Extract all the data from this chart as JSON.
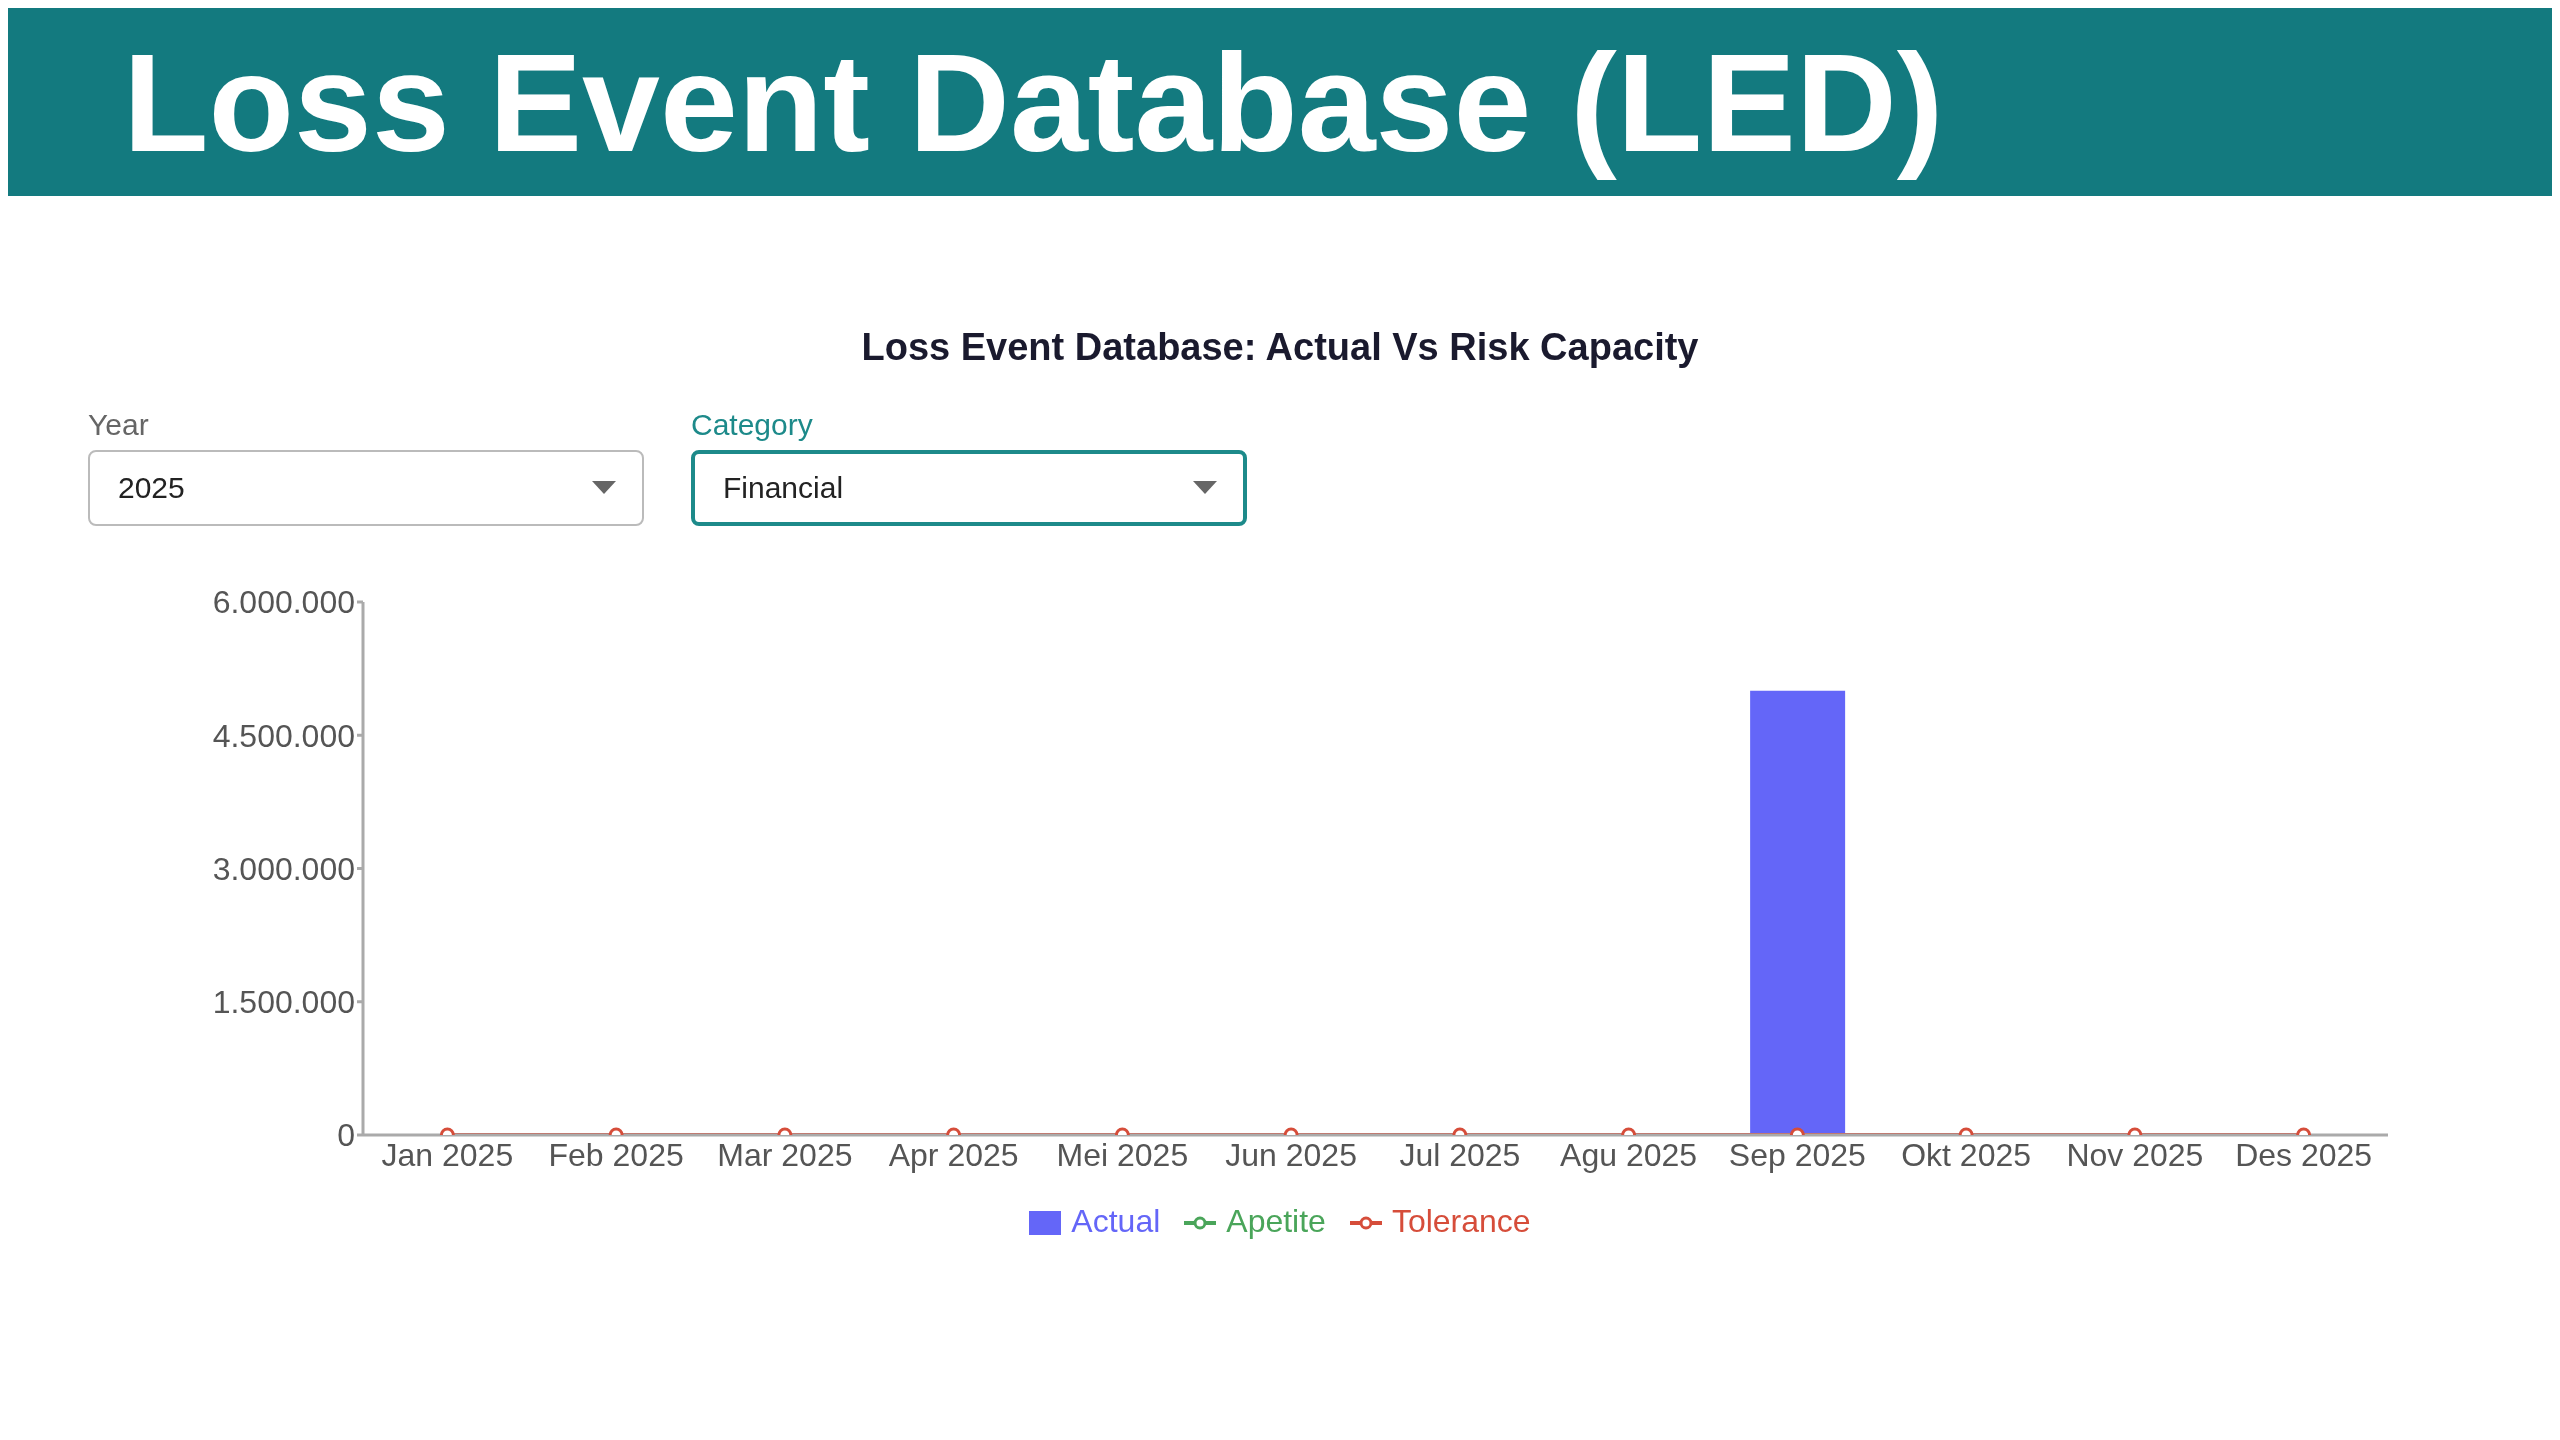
{
  "chart_data": {
    "type": "bar",
    "title": "Loss Event Database (LED)",
    "subtitle": "Loss Event Database: Actual Vs Risk Capacity",
    "annotations": [
      "Year",
      "2025",
      "Category",
      "Financial"
    ],
    "categories": [
      "Jan 2025",
      "Feb 2025",
      "Mar 2025",
      "Apr 2025",
      "Mei 2025",
      "Jun 2025",
      "Jul 2025",
      "Agu 2025",
      "Sep 2025",
      "Okt 2025",
      "Nov 2025",
      "Des 2025"
    ],
    "series": [
      {
        "name": "Actual",
        "color": "#6466f8",
        "values": [
          0,
          0,
          0,
          0,
          0,
          0,
          0,
          0,
          5000000,
          0,
          0,
          0
        ]
      },
      {
        "name": "Apetite",
        "type": "line",
        "color": "#4aa55a",
        "values": [
          null,
          null,
          null,
          null,
          null,
          null,
          null,
          null,
          null,
          null,
          null,
          null
        ]
      },
      {
        "name": "Tolerance",
        "type": "line",
        "color": "#d64d3a",
        "values": [
          0,
          0,
          0,
          0,
          0,
          0,
          0,
          0,
          0,
          0,
          0,
          0
        ]
      }
    ],
    "ylim": [
      0,
      6000000
    ],
    "yticks": [
      {
        "value": 0,
        "label": "0"
      },
      {
        "value": 1500000,
        "label": "1.500.000"
      },
      {
        "value": 3000000,
        "label": "3.000.000"
      },
      {
        "value": 4500000,
        "label": "4.500.000"
      },
      {
        "value": 6000000,
        "label": "6.000.000"
      }
    ],
    "grid": false,
    "legend": "bottom",
    "marker": "circle",
    "line_style": "solid"
  }
}
